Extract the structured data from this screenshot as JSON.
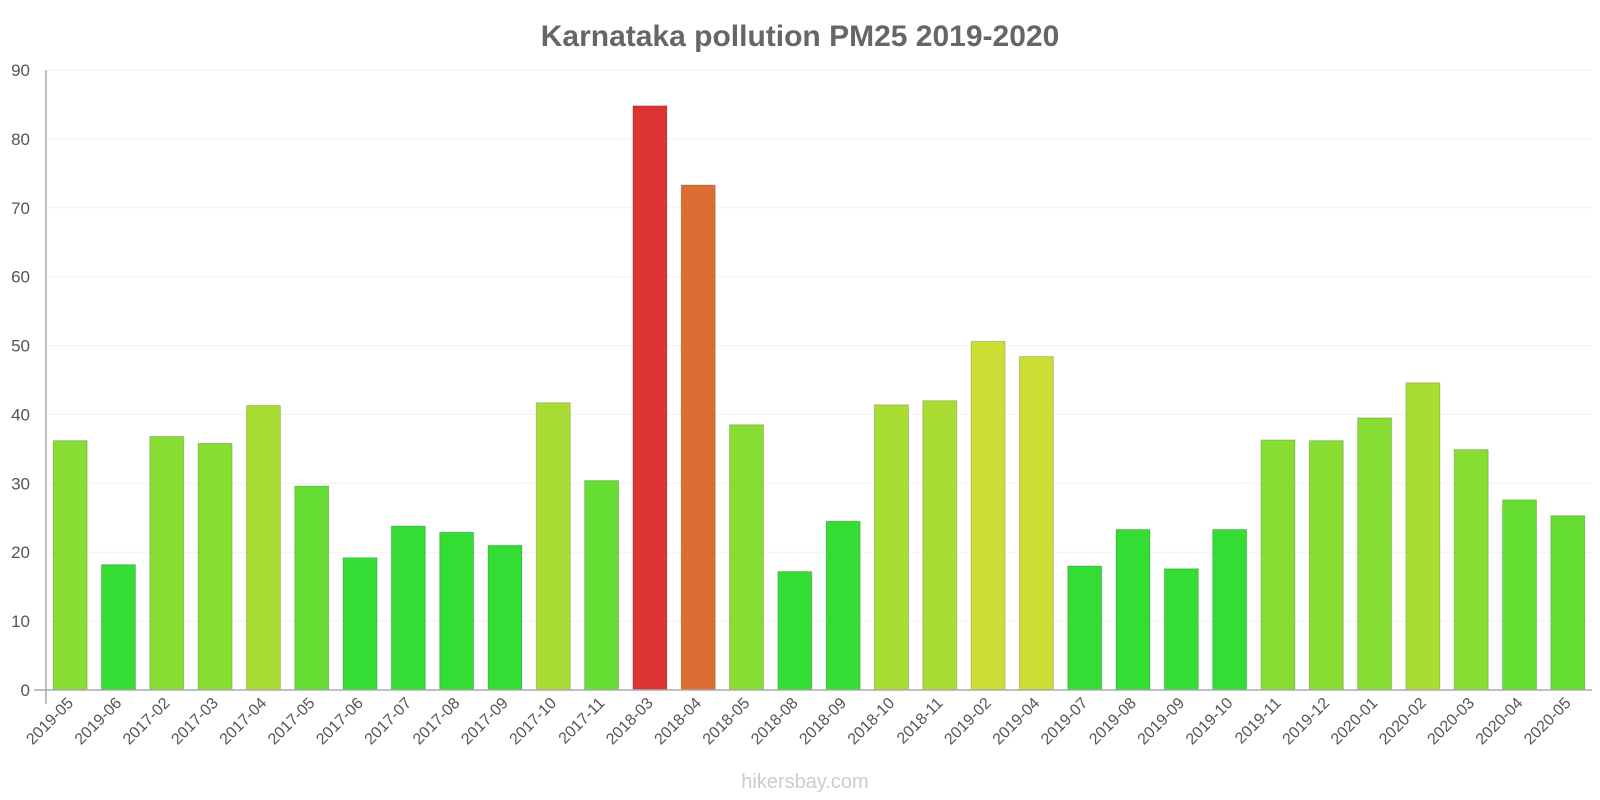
{
  "chart_data": {
    "type": "bar",
    "title": "Karnataka pollution PM25 2019-2020",
    "xlabel": "",
    "ylabel": "",
    "ylim": [
      0,
      90
    ],
    "yticks": [
      0,
      10,
      20,
      30,
      40,
      50,
      60,
      70,
      80,
      90
    ],
    "grid": true,
    "categories": [
      "2019-05",
      "2019-06",
      "2017-02",
      "2017-03",
      "2017-04",
      "2017-05",
      "2017-06",
      "2017-07",
      "2017-08",
      "2017-09",
      "2017-10",
      "2017-11",
      "2018-03",
      "2018-04",
      "2018-05",
      "2018-08",
      "2018-09",
      "2018-10",
      "2018-11",
      "2019-02",
      "2019-04",
      "2019-07",
      "2019-08",
      "2019-09",
      "2019-10",
      "2019-11",
      "2019-12",
      "2020-01",
      "2020-02",
      "2020-03",
      "2020-04",
      "2020-05"
    ],
    "values": [
      36.2,
      18.2,
      36.8,
      35.8,
      41.3,
      29.6,
      19.2,
      23.8,
      22.9,
      21.0,
      41.7,
      30.4,
      84.8,
      73.3,
      38.5,
      17.2,
      24.5,
      41.4,
      42.0,
      50.6,
      48.4,
      18.0,
      23.3,
      17.6,
      23.3,
      36.3,
      36.2,
      39.5,
      44.6,
      34.9,
      27.6,
      25.3
    ],
    "colors": [
      "#88dd33",
      "#33dd33",
      "#88dd33",
      "#88dd33",
      "#aadd33",
      "#66dd33",
      "#33dd33",
      "#33dd33",
      "#33dd33",
      "#33dd33",
      "#aadd33",
      "#66dd33",
      "#dd3333",
      "#dd6e33",
      "#88dd33",
      "#33dd33",
      "#33dd33",
      "#aadd33",
      "#aadd33",
      "#ccdd33",
      "#ccdd33",
      "#33dd33",
      "#33dd33",
      "#33dd33",
      "#33dd33",
      "#88dd33",
      "#88dd33",
      "#88dd33",
      "#aadd33",
      "#88dd33",
      "#66dd33",
      "#66dd33"
    ],
    "watermark": "hikersbay.com"
  }
}
